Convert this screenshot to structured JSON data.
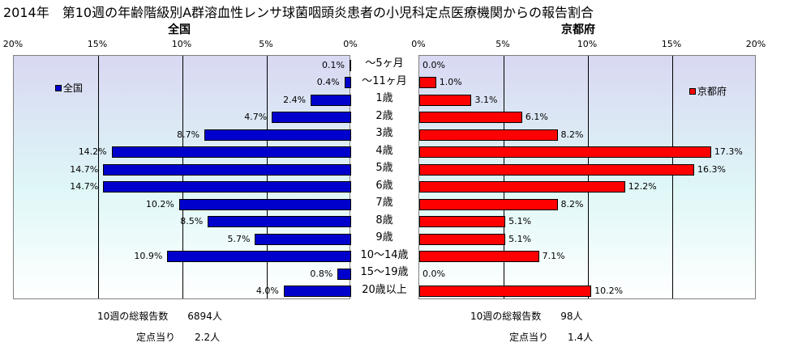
{
  "title": "2014年　第10週の年齢階級別A群溶血性レンサ球菌咽頭炎患者の小児科定点医療機関からの報告割合",
  "chart_data": [
    {
      "type": "bar",
      "title": "全国",
      "orientation": "horizontal",
      "x_direction": "reversed",
      "categories": [
        "～5ヶ月",
        "～11ヶ月",
        "1歳",
        "2歳",
        "3歳",
        "4歳",
        "5歳",
        "6歳",
        "7歳",
        "8歳",
        "9歳",
        "10～14歳",
        "15～19歳",
        "20歳以上"
      ],
      "series": [
        {
          "name": "全国",
          "values": [
            0.1,
            0.4,
            2.4,
            4.7,
            8.7,
            14.2,
            14.7,
            14.7,
            10.2,
            8.5,
            5.7,
            10.9,
            0.8,
            4.0
          ],
          "color": "#0000cc"
        }
      ],
      "data_labels": [
        "0.1%",
        "0.4%",
        "2.4%",
        "4.7%",
        "8.7%",
        "14.2%",
        "14.7%",
        "14.7%",
        "10.2%",
        "8.5%",
        "5.7%",
        "10.9%",
        "0.8%",
        "4.0%"
      ],
      "xlim": [
        0,
        20
      ],
      "x_ticks": [
        "20%",
        "15%",
        "10%",
        "5%",
        "0%"
      ],
      "grid": true,
      "legend_position": "top-left"
    },
    {
      "type": "bar",
      "title": "京都府",
      "orientation": "horizontal",
      "categories": [
        "～5ヶ月",
        "～11ヶ月",
        "1歳",
        "2歳",
        "3歳",
        "4歳",
        "5歳",
        "6歳",
        "7歳",
        "8歳",
        "9歳",
        "10～14歳",
        "15～19歳",
        "20歳以上"
      ],
      "series": [
        {
          "name": "京都府",
          "values": [
            0.0,
            1.0,
            3.1,
            6.1,
            8.2,
            17.3,
            16.3,
            12.2,
            8.2,
            5.1,
            5.1,
            7.1,
            0.0,
            10.2
          ],
          "color": "#ff0000"
        }
      ],
      "data_labels": [
        "0.0%",
        "1.0%",
        "3.1%",
        "6.1%",
        "8.2%",
        "17.3%",
        "16.3%",
        "12.2%",
        "8.2%",
        "5.1%",
        "5.1%",
        "7.1%",
        "0.0%",
        "10.2%"
      ],
      "xlim": [
        0,
        20
      ],
      "x_ticks": [
        "0%",
        "5%",
        "10%",
        "15%",
        "20%"
      ],
      "grid": true,
      "legend_position": "top-right"
    }
  ],
  "footer": {
    "national": {
      "total_label": "10週の総報告数",
      "total_value": "6894人",
      "per_label": "定点当り",
      "per_value": "2.2人"
    },
    "kyoto": {
      "total_label": "10週の総報告数",
      "total_value": "98人",
      "per_label": "定点当り",
      "per_value": "1.4人"
    }
  }
}
